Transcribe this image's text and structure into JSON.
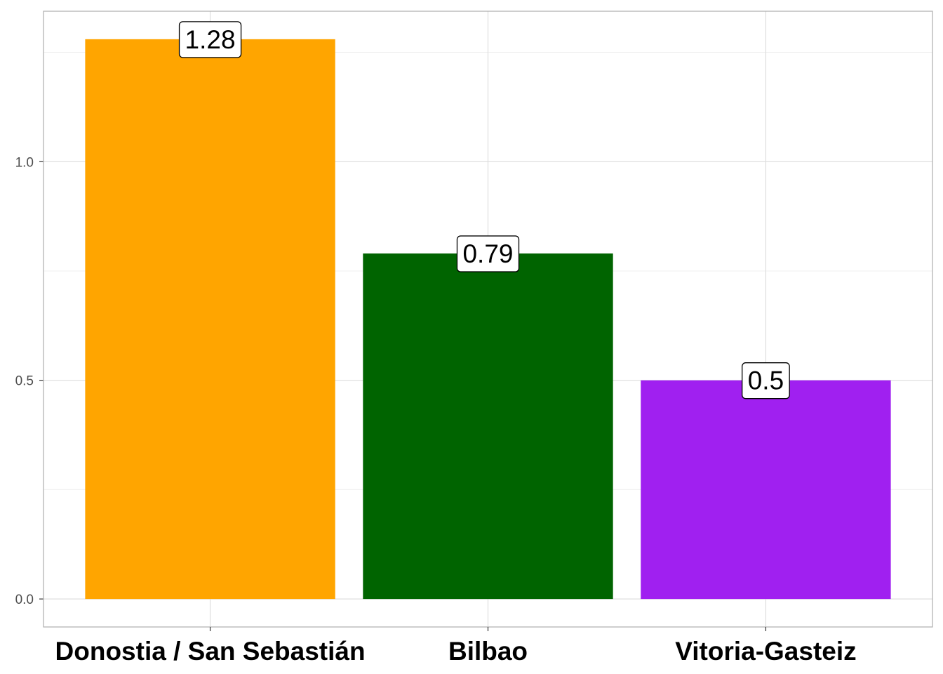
{
  "chart_data": {
    "type": "bar",
    "title": "",
    "xlabel": "",
    "ylabel": "",
    "categories": [
      "Donostia / San Sebastián",
      "Bilbao",
      "Vitoria-Gasteiz"
    ],
    "values": [
      1.28,
      0.79,
      0.5
    ],
    "value_labels": [
      "1.28",
      "0.79",
      "0.5"
    ],
    "colors": [
      "#FFA500",
      "#006400",
      "#A020F0"
    ],
    "ylim": [
      -0.064,
      1.344
    ],
    "yticks": [
      0.0,
      0.5,
      1.0
    ],
    "ytick_labels": [
      "0.0",
      "0.5",
      "1.0"
    ],
    "grid": true,
    "legend": "none"
  },
  "theme": {
    "background": "#ffffff",
    "grid_major": "#dedede",
    "grid_minor": "#efefef",
    "panel_border": "#b3b3b3",
    "tick_text_color": "#4d4d4d"
  }
}
